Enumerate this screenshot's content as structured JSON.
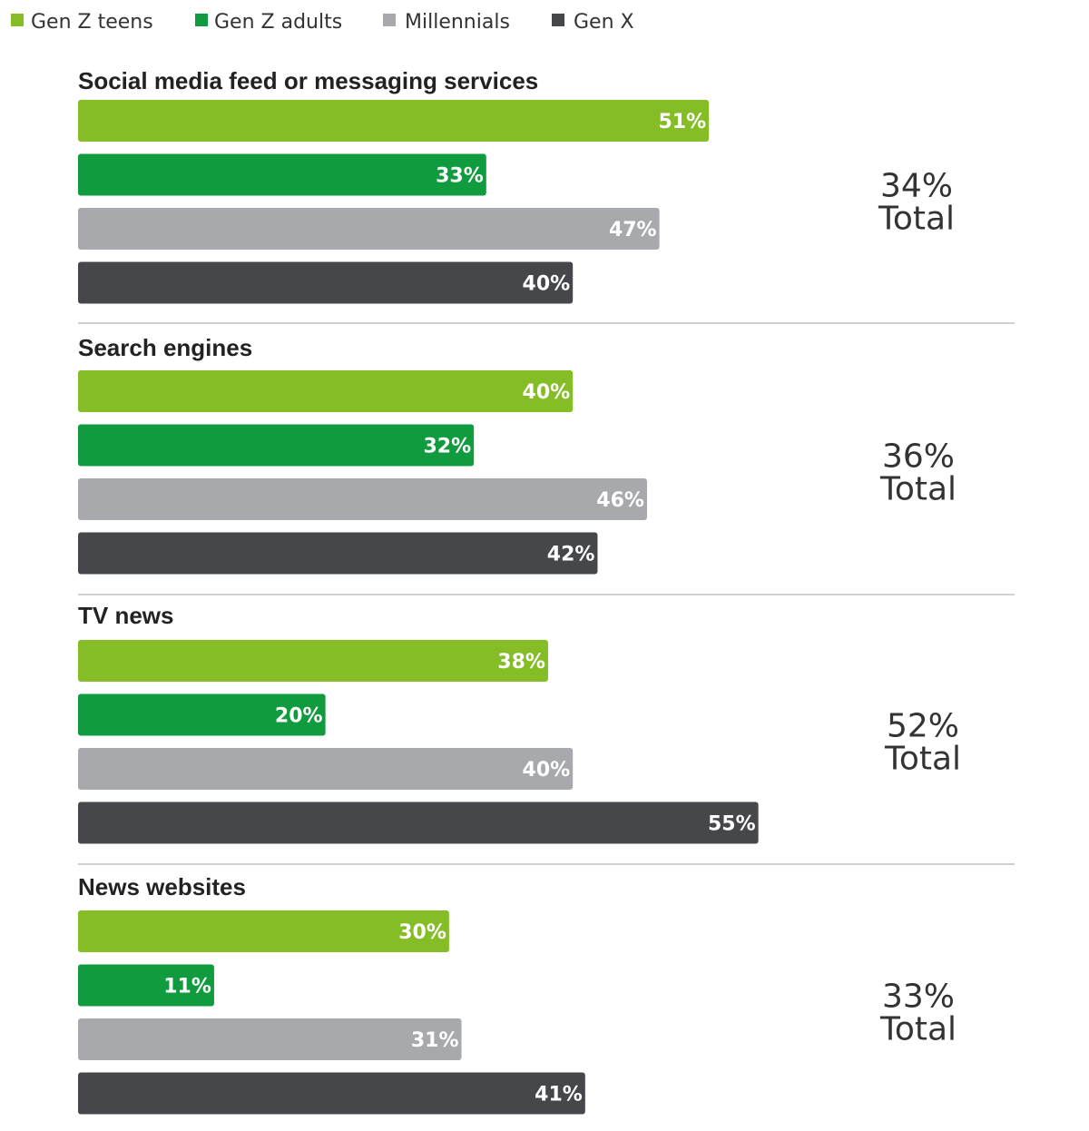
{
  "chart_data": {
    "type": "bar",
    "orientation": "horizontal",
    "xlim": [
      0,
      100
    ],
    "grid": false,
    "legend_placement": "top-left",
    "categories": [
      "Social media feed or messaging services",
      "Search engines",
      "TV news",
      "News websites"
    ],
    "series": [
      {
        "name": "Gen Z teens",
        "color": "#84bd26",
        "values": [
          51,
          40,
          38,
          30
        ]
      },
      {
        "name": "Gen Z adults",
        "color": "#0f9b3e",
        "values": [
          33,
          32,
          20,
          11
        ]
      },
      {
        "name": "Millennials",
        "color": "#a7a9ac",
        "values": [
          47,
          46,
          40,
          31
        ]
      },
      {
        "name": "Gen X",
        "color": "#45474b",
        "values": [
          40,
          42,
          55,
          41
        ]
      }
    ],
    "totals": [
      {
        "value": "34%",
        "label": "Total"
      },
      {
        "value": "36%",
        "label": "Total"
      },
      {
        "value": "52%",
        "label": "Total"
      },
      {
        "value": "33%",
        "label": "Total"
      }
    ],
    "value_suffix": "%"
  }
}
